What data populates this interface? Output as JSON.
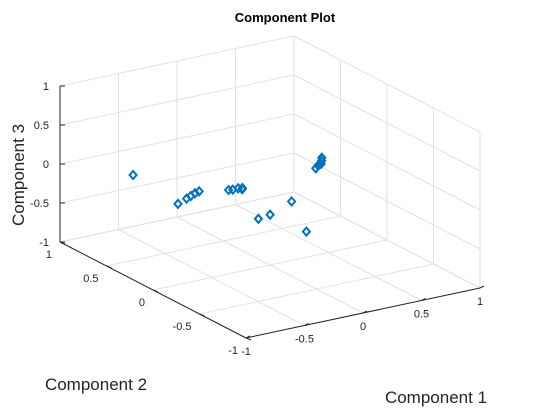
{
  "chart_data": {
    "type": "scatter",
    "title": "Component Plot",
    "xlabel": "Component 1",
    "ylabel": "Component 2",
    "zlabel": "Component 3",
    "xlim": [
      -1,
      1
    ],
    "ylim": [
      -1,
      1
    ],
    "zlim": [
      -1,
      1
    ],
    "grid": true,
    "marker": "diamond",
    "marker_color": "#0072bd",
    "x_ticks": [
      "-1",
      "-0.5",
      "0",
      "0.5",
      "1"
    ],
    "y_ticks": [
      "-1",
      "-0.5",
      "0",
      "0.5",
      "1"
    ],
    "z_ticks": [
      "-1",
      "-0.5",
      "0",
      "0.5",
      "1"
    ],
    "points": [
      {
        "x": -0.55,
        "y": 0.78,
        "z": -0.15
      },
      {
        "x": -0.27,
        "y": 0.65,
        "z": -0.53
      },
      {
        "x": -0.22,
        "y": 0.62,
        "z": -0.46
      },
      {
        "x": -0.2,
        "y": 0.6,
        "z": -0.42
      },
      {
        "x": -0.18,
        "y": 0.58,
        "z": -0.38
      },
      {
        "x": -0.16,
        "y": 0.56,
        "z": -0.35
      },
      {
        "x": -0.02,
        "y": 0.42,
        "z": -0.29
      },
      {
        "x": 0.0,
        "y": 0.4,
        "z": -0.28
      },
      {
        "x": 0.03,
        "y": 0.38,
        "z": -0.26
      },
      {
        "x": 0.05,
        "y": 0.36,
        "z": -0.25
      },
      {
        "x": 0.08,
        "y": 0.4,
        "z": -0.3
      },
      {
        "x": 0.06,
        "y": 0.2,
        "z": -0.55
      },
      {
        "x": 0.16,
        "y": 0.2,
        "z": -0.53
      },
      {
        "x": 0.28,
        "y": 0.12,
        "z": -0.35
      },
      {
        "x": 0.2,
        "y": -0.14,
        "z": -0.55
      },
      {
        "x": 0.55,
        "y": 0.2,
        "z": -0.06
      },
      {
        "x": 0.57,
        "y": 0.2,
        "z": -0.03
      },
      {
        "x": 0.58,
        "y": 0.18,
        "z": 0.0
      },
      {
        "x": 0.6,
        "y": 0.2,
        "z": 0.02
      },
      {
        "x": 0.61,
        "y": 0.21,
        "z": 0.05
      }
    ]
  }
}
